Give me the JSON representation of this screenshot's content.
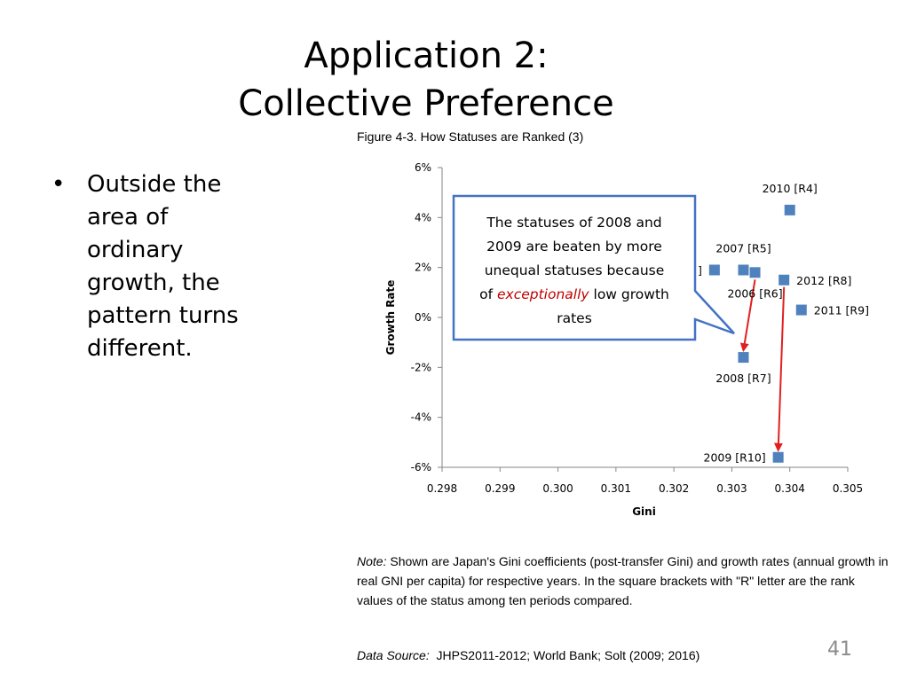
{
  "slide": {
    "title_line1": "Application 2:",
    "title_line2": "Collective Preference",
    "bullet": "Outside the area of ordinary growth, the pattern turns different.",
    "bullet_marker": "•",
    "page_number": "41"
  },
  "figure_title": "Figure 4-3. How Statuses are Ranked (3)",
  "callout": {
    "lines": [
      {
        "plain": "The statuses of 2008 and"
      },
      {
        "plain": "2009 are beaten by more"
      },
      {
        "plain": "unequal statuses because"
      },
      {
        "prefix": "of ",
        "emph": "exceptionally",
        "suffix": " low growth"
      },
      {
        "plain": "rates"
      }
    ],
    "emph_color": "#c00000",
    "border_color": "#4472c4"
  },
  "note": {
    "label": "Note:",
    "text": "Shown are Japan's Gini coefficients (post-transfer Gini) and growth rates (annual growth in real GNI per capita) for respective years. In the square brackets with \"R\" letter are the rank values of the status among ten periods compared."
  },
  "source": {
    "label": "Data Source:",
    "text": "JHPS2011-2012; World Bank; Solt (2009; 2016)"
  },
  "chart_data": {
    "type": "scatter",
    "title": "Figure 4-3. How Statuses are Ranked (3)",
    "xlabel": "Gini",
    "ylabel": "Growth Rate",
    "xlim": [
      0.298,
      0.305
    ],
    "ylim": [
      -0.06,
      0.06
    ],
    "x_ticks": [
      "0.298",
      "0.299",
      "0.300",
      "0.301",
      "0.302",
      "0.303",
      "0.304",
      "0.305"
    ],
    "y_ticks": [
      "6%",
      "4%",
      "2%",
      "0%",
      "-2%",
      "-4%",
      "-6%"
    ],
    "grid": false,
    "marker_color": "#4f81bd",
    "arrow_color": "#e02020",
    "points": [
      {
        "x": 0.304,
        "y": 0.043,
        "label": "2010 [R4]",
        "label_pos": "above"
      },
      {
        "x": 0.3032,
        "y": 0.019,
        "label": "2007 [R5]",
        "label_pos": "above"
      },
      {
        "x": 0.3034,
        "y": 0.018,
        "label": "2006 [R6]",
        "label_pos": "below"
      },
      {
        "x": 0.3027,
        "y": 0.019,
        "label": "]",
        "label_pos": "left"
      },
      {
        "x": 0.3039,
        "y": 0.015,
        "label": "2012 [R8]",
        "label_pos": "right"
      },
      {
        "x": 0.3042,
        "y": 0.003,
        "label": "2011 [R9]",
        "label_pos": "right"
      },
      {
        "x": 0.3032,
        "y": -0.016,
        "label": "2008 [R7]",
        "label_pos": "below"
      },
      {
        "x": 0.3038,
        "y": -0.056,
        "label": "2009 [R10]",
        "label_pos": "left"
      }
    ],
    "arrows": [
      {
        "from_point": 2,
        "to_point": 6
      },
      {
        "from_point": 4,
        "to_point": 7
      }
    ]
  }
}
